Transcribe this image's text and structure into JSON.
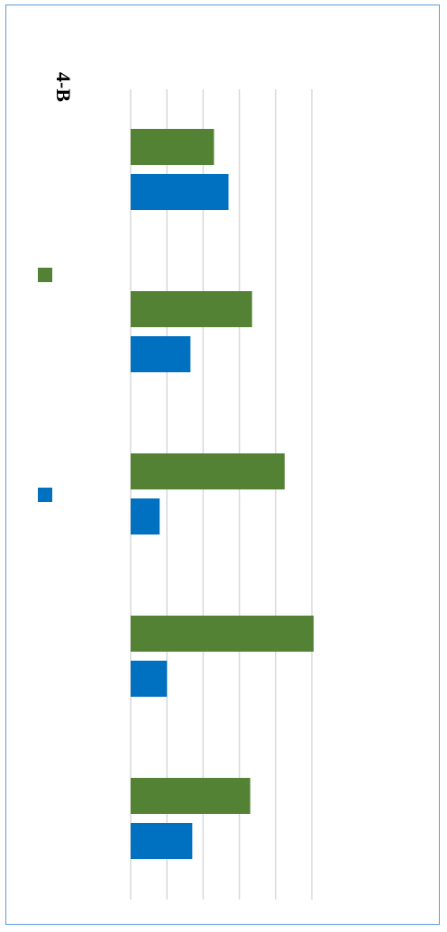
{
  "chart_data": {
    "type": "bar",
    "orientation": "horizontal",
    "rotated": "90deg-clockwise",
    "title": "4-B",
    "categories": [
      "",
      "",
      "",
      "",
      ""
    ],
    "series": [
      {
        "color": "#548235",
        "values": [
          2.3,
          3.35,
          4.25,
          5.05,
          3.3
        ]
      },
      {
        "color": "#0070c0",
        "values": [
          2.7,
          1.65,
          0.8,
          1.0,
          1.7
        ]
      }
    ],
    "xlim": [
      0,
      5
    ],
    "grid": true,
    "legend_position": "right"
  }
}
